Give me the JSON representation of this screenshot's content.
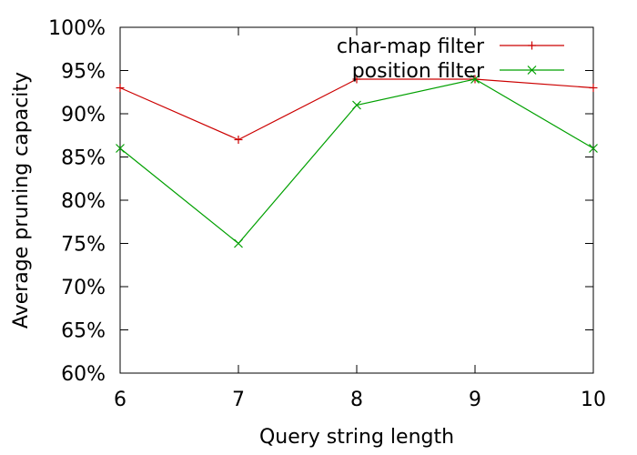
{
  "chart_data": {
    "type": "line",
    "xlabel": "Query string length",
    "ylabel": "Average pruning capacity",
    "x": [
      6,
      7,
      8,
      9,
      10
    ],
    "xlim": [
      6,
      10
    ],
    "ylim": [
      60,
      100
    ],
    "xticks": [
      6,
      7,
      8,
      9,
      10
    ],
    "yticks": [
      60,
      65,
      70,
      75,
      80,
      85,
      90,
      95,
      100
    ],
    "ytick_labels": [
      "60%",
      "65%",
      "70%",
      "75%",
      "80%",
      "85%",
      "90%",
      "95%",
      "100%"
    ],
    "grid": false,
    "legend_position": "top-right",
    "series": [
      {
        "name": "char-map filter",
        "values": [
          93,
          87,
          94,
          94,
          93
        ],
        "color": "#cc0000",
        "marker": "plus"
      },
      {
        "name": "position filter",
        "values": [
          86,
          75,
          91,
          94,
          86
        ],
        "color": "#00a000",
        "marker": "cross"
      }
    ]
  }
}
